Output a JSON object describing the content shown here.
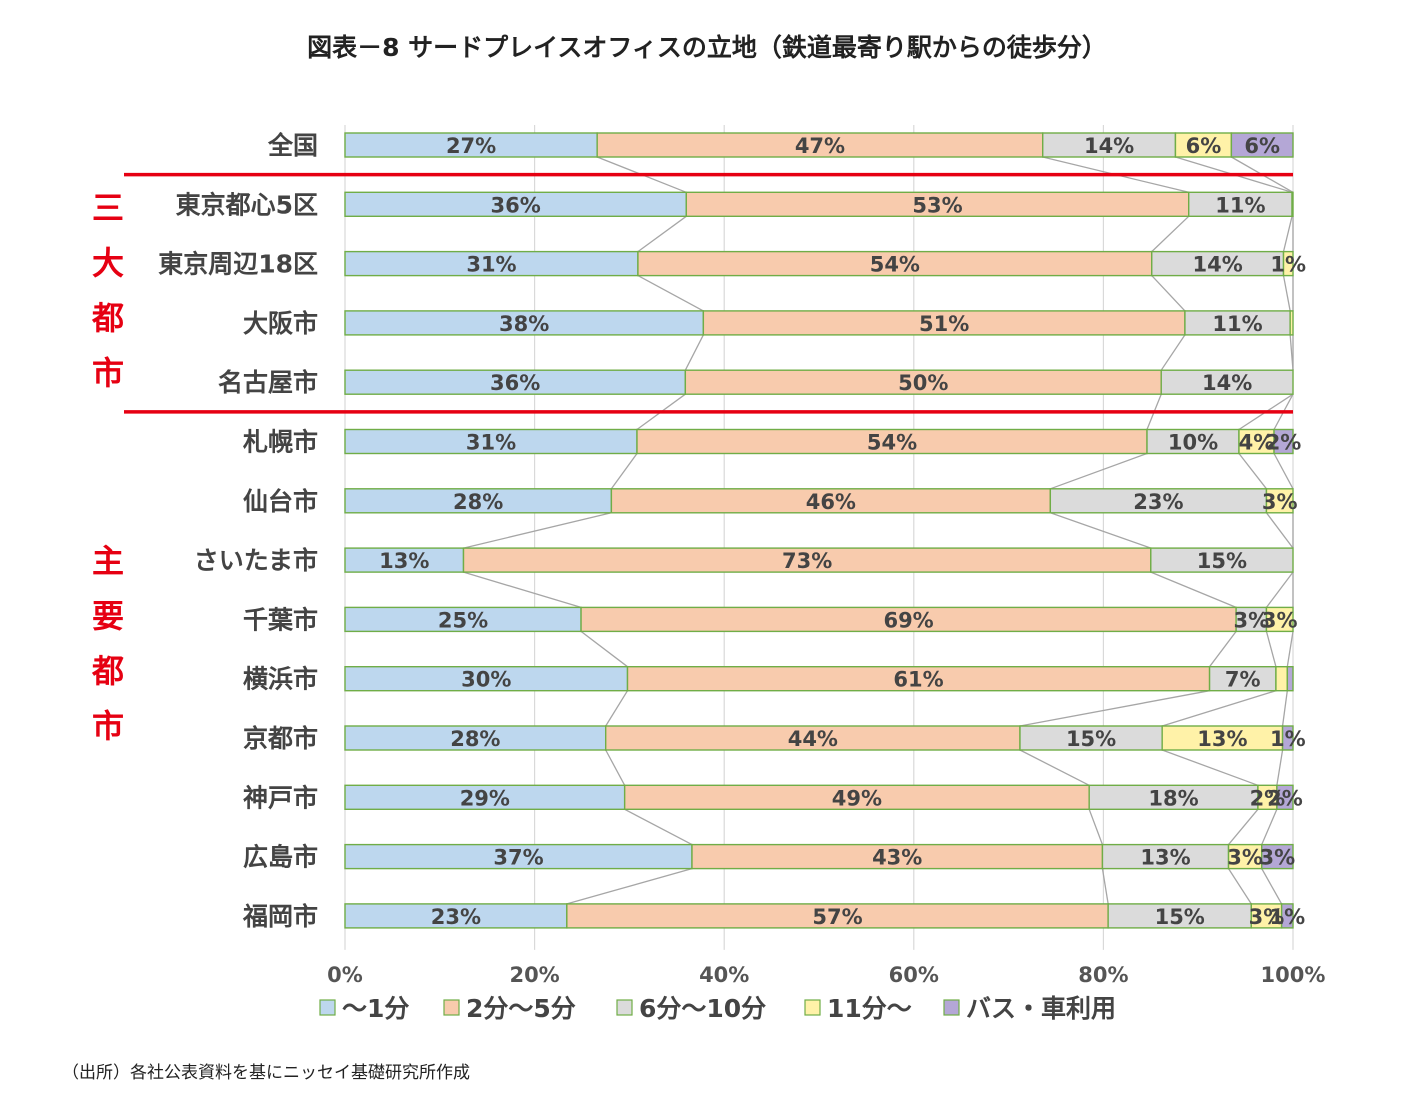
{
  "title": "図表－8 サードプレイスオフィスの立地（鉄道最寄り駅からの徒歩分）",
  "source": "（出所）各社公表資料を基にニッセイ基礎研究所作成",
  "group_labels": [
    {
      "text": "三大都市",
      "chars": [
        "三",
        "大",
        "都",
        "市"
      ]
    },
    {
      "text": "主要都市",
      "chars": [
        "主",
        "要",
        "都",
        "市"
      ]
    }
  ],
  "colors": {
    "separator": "#e60012",
    "group_label": "#e60012",
    "connector": "#a6a6a6",
    "grid": "#d9d9d9",
    "bar_border": "#70ad47"
  },
  "chart_data": {
    "type": "bar",
    "orientation": "horizontal",
    "stacked": "percent",
    "categories": [
      "全国",
      "東京都心5区",
      "東京周辺18区",
      "大阪市",
      "名古屋市",
      "札幌市",
      "仙台市",
      "さいたま市",
      "千葉市",
      "横浜市",
      "京都市",
      "神戸市",
      "広島市",
      "福岡市"
    ],
    "series": [
      {
        "name": "～1分",
        "color": "#bdd7ee",
        "values": [
          26.6,
          36.0,
          30.9,
          37.8,
          35.9,
          30.8,
          28.1,
          12.5,
          24.9,
          29.8,
          27.5,
          29.5,
          36.6,
          23.4
        ],
        "labels": [
          "27%",
          "36%",
          "31%",
          "38%",
          "36%",
          "31%",
          "28%",
          "13%",
          "25%",
          "30%",
          "28%",
          "29%",
          "37%",
          "23%"
        ]
      },
      {
        "name": "2分～5分",
        "color": "#f8cbad",
        "values": [
          47.0,
          53.0,
          54.2,
          50.8,
          50.2,
          53.8,
          46.3,
          72.5,
          69.1,
          61.4,
          43.7,
          49.0,
          43.3,
          57.1
        ],
        "labels": [
          "47%",
          "53%",
          "54%",
          "51%",
          "50%",
          "54%",
          "46%",
          "73%",
          "69%",
          "61%",
          "44%",
          "49%",
          "43%",
          "57%"
        ]
      },
      {
        "name": "6分～10分",
        "color": "#dbdbdb",
        "values": [
          14.0,
          10.9,
          13.9,
          11.1,
          13.9,
          9.7,
          22.8,
          15.0,
          3.2,
          7.0,
          15.0,
          17.8,
          13.3,
          15.1
        ],
        "labels": [
          "14%",
          "11%",
          "14%",
          "11%",
          "14%",
          "10%",
          "23%",
          "15%",
          "3%",
          "7%",
          "15%",
          "18%",
          "13%",
          "15%"
        ]
      },
      {
        "name": "11分～",
        "color": "#fff2a8",
        "values": [
          5.9,
          0.1,
          1.0,
          0.3,
          0,
          3.7,
          2.8,
          0,
          2.8,
          1.2,
          12.7,
          2.0,
          3.5,
          3.2
        ],
        "labels": [
          "6%",
          "",
          "1%",
          "",
          "",
          "4%",
          "3%",
          "",
          "3%",
          "",
          "13%",
          "2%",
          "3%",
          "3%"
        ]
      },
      {
        "name": "バス・車利用",
        "color": "#b4a7d6",
        "values": [
          6.5,
          0,
          0,
          0,
          0,
          2.0,
          0,
          0,
          0,
          0.6,
          1.1,
          1.7,
          3.3,
          1.2
        ],
        "labels": [
          "6%",
          "",
          "",
          "",
          "",
          "2%",
          "",
          "",
          "",
          "",
          "1%",
          "2%",
          "3%",
          "1%"
        ]
      }
    ],
    "xlim": [
      0,
      100
    ],
    "xticks": [
      "0%",
      "20%",
      "40%",
      "60%",
      "80%",
      "100%"
    ],
    "xticks_values": [
      0,
      20,
      40,
      60,
      80,
      100
    ],
    "legend_position": "bottom",
    "grid": true
  }
}
